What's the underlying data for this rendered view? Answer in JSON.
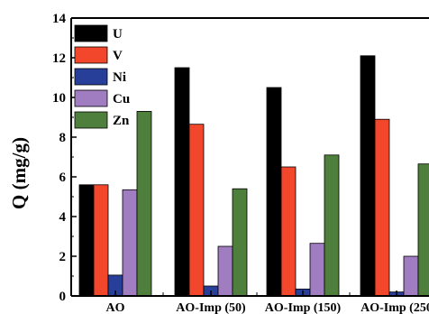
{
  "chart_data": {
    "type": "bar",
    "ylabel": "Q (mg/g)",
    "xlabel": "",
    "ylim": [
      0,
      14
    ],
    "yticks": [
      0,
      2,
      4,
      6,
      8,
      10,
      12,
      14
    ],
    "categories": [
      "AO",
      "AO-Imp (50)",
      "AO-Imp (150)",
      "AO-Imp (250"
    ],
    "series": [
      {
        "name": "U",
        "color": "#000000",
        "values": [
          5.6,
          11.5,
          10.5,
          12.1
        ]
      },
      {
        "name": "V",
        "color": "#f2472b",
        "values": [
          5.6,
          8.65,
          6.5,
          8.9
        ]
      },
      {
        "name": "Ni",
        "color": "#283f9a",
        "values": [
          1.05,
          0.5,
          0.35,
          0.2
        ]
      },
      {
        "name": "Cu",
        "color": "#a07cc0",
        "values": [
          5.35,
          2.5,
          2.65,
          2.0
        ]
      },
      {
        "name": "Zn",
        "color": "#4f7f3c",
        "values": [
          9.3,
          5.4,
          7.1,
          6.65
        ]
      }
    ],
    "legend_position": "top-left",
    "grid": false
  }
}
